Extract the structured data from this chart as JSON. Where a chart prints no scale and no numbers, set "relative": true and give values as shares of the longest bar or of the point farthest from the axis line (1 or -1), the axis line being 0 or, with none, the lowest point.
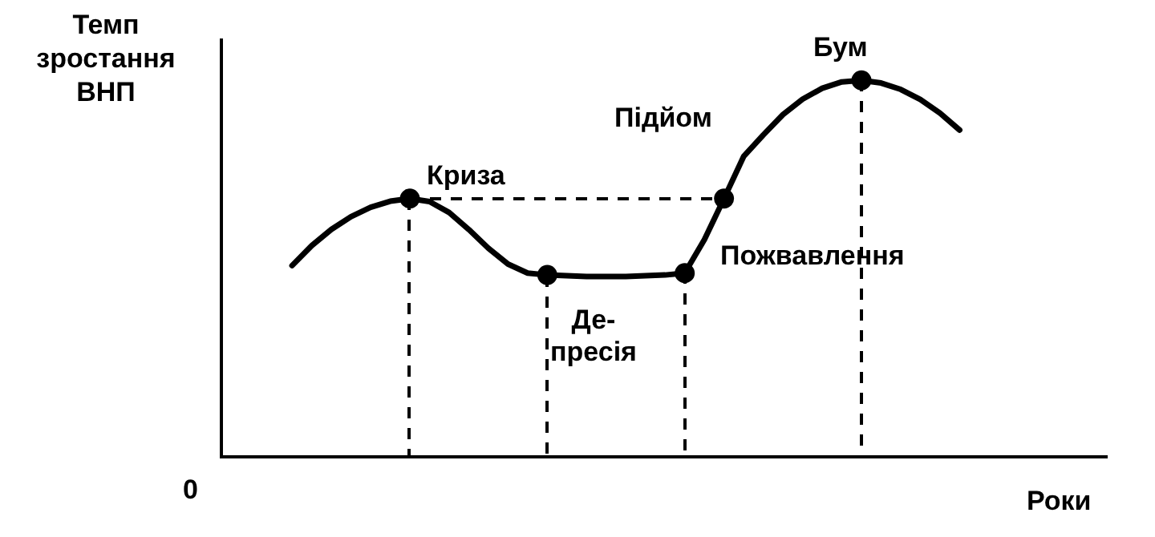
{
  "chart_data": {
    "type": "line",
    "relative": true,
    "xlabel": "Роки",
    "ylabel": "Темп зростання ВНП",
    "line_style": "solid",
    "categories": [
      null,
      null,
      null,
      null,
      null,
      null,
      null,
      null,
      null,
      null,
      null,
      null,
      null,
      null,
      null,
      null,
      null,
      null,
      null,
      null,
      null,
      null,
      null,
      null,
      null,
      null,
      null,
      null,
      null,
      null,
      null,
      null,
      null,
      null,
      null
    ],
    "series": [
      {
        "color": "#000000",
        "values": [
          0.508,
          0.561,
          0.604,
          0.638,
          0.663,
          0.679,
          0.686,
          0.678,
          0.649,
          0.604,
          0.554,
          0.512,
          0.488,
          0.483,
          0.481,
          0.479,
          0.479,
          0.479,
          0.481,
          0.483,
          0.488,
          0.577,
          0.686,
          0.798,
          0.855,
          0.909,
          0.95,
          0.979,
          0.996,
          1,
          0.993,
          0.976,
          0.949,
          0.913,
          0.868
        ]
      }
    ],
    "annotations": [
      "0",
      "Криза",
      "Де-\nпресія",
      "Пожвавлення",
      "Підйом",
      "Бум"
    ]
  }
}
